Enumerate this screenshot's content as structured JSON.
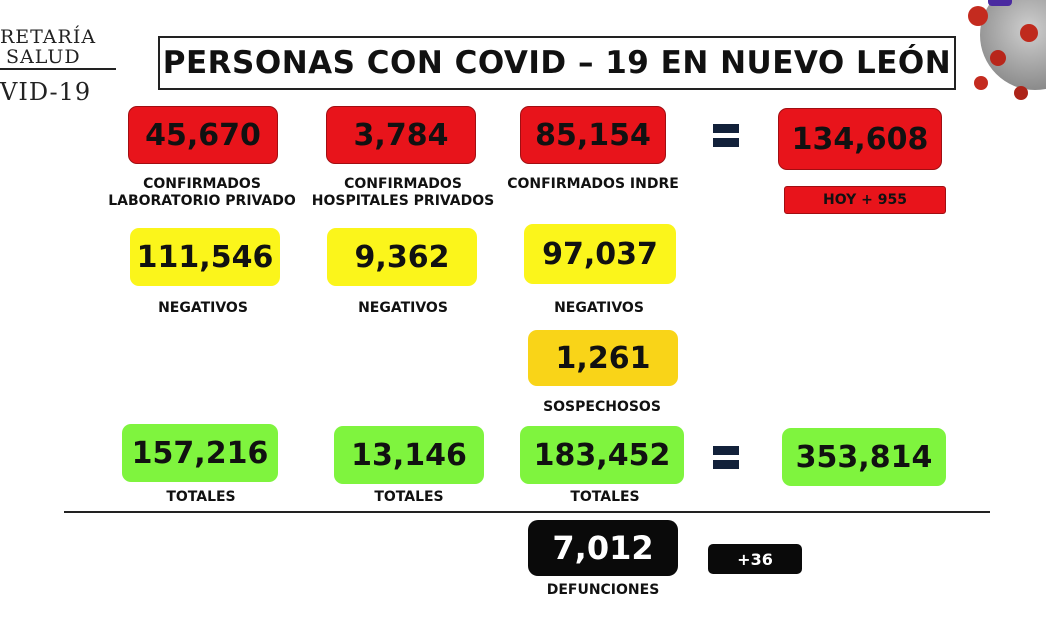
{
  "logo": {
    "line1": "RETARÍA",
    "line2": "SALUD",
    "line3": "VID-19"
  },
  "title": "PERSONAS CON COVID – 19 EN NUEVO LEÓN",
  "confirmados": {
    "privado_lab": {
      "value": "45,670",
      "label1": "CONFIRMADOS",
      "label2": "LABORATORIO PRIVADO"
    },
    "hospitales": {
      "value": "3,784",
      "label1": "CONFIRMADOS",
      "label2": "HOSPITALES PRIVADOS"
    },
    "indre": {
      "value": "85,154",
      "label": "CONFIRMADOS INDRE"
    },
    "total": "134,608",
    "hoy": "HOY + 955"
  },
  "negativos": {
    "privado_lab": "111,546",
    "hospitales": "9,362",
    "indre": "97,037",
    "label": "NEGATIVOS"
  },
  "sospechosos": {
    "value": "1,261",
    "label": "SOSPECHOSOS"
  },
  "totales": {
    "privado_lab": "157,216",
    "hospitales": "13,146",
    "indre": "183,452",
    "total": "353,814",
    "label": "TOTALES"
  },
  "defunciones": {
    "value": "7,012",
    "label": "DEFUNCIONES",
    "delta": "+36"
  },
  "colors": {
    "red": "#e8141b",
    "yellow": "#fbf51b",
    "gold": "#f9d418",
    "green": "#7ff43e",
    "black": "#0a0a0a"
  }
}
